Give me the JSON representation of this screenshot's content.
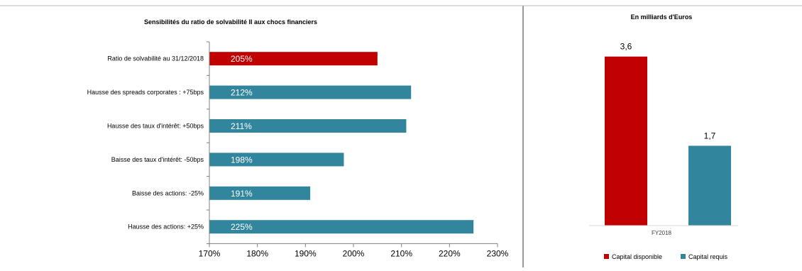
{
  "chart_data": [
    {
      "type": "bar",
      "orientation": "horizontal",
      "title": "Sensibilités du ratio de solvabilité II aux chocs financiers",
      "categories": [
        "Ratio de solvabilité au 31/12/2018",
        "Hausse des spreads corporates : +75bps",
        "Hausse des taux d'intérêt: +50bps",
        "Baisse des taux d'intérêt: -50bps",
        "Baisse des actions: -25%",
        "Hausse des actions: +25%"
      ],
      "values": [
        205,
        212,
        211,
        198,
        191,
        225
      ],
      "value_labels": [
        "205%",
        "212%",
        "211%",
        "198%",
        "191%",
        "225%"
      ],
      "bar_colors": [
        "#c00000",
        "#31859c",
        "#31859c",
        "#31859c",
        "#31859c",
        "#31859c"
      ],
      "xlim": [
        170,
        230
      ],
      "xticks": [
        170,
        180,
        190,
        200,
        210,
        220,
        230
      ],
      "xtick_labels": [
        "170%",
        "180%",
        "190%",
        "200%",
        "210%",
        "220%",
        "230%"
      ],
      "xlabel": "",
      "ylabel": "",
      "grid": false,
      "legend": "none"
    },
    {
      "type": "bar",
      "title": "En milliards d'Euros",
      "categories": [
        "FY2018"
      ],
      "series": [
        {
          "name": "Capital disponible",
          "values": [
            3.6
          ],
          "label": "3,6",
          "color": "#c00000"
        },
        {
          "name": "Capital requis",
          "values": [
            1.7
          ],
          "label": "1,7",
          "color": "#31859c"
        }
      ],
      "ylim": [
        0,
        4.2
      ],
      "xlabel": "",
      "ylabel": "",
      "grid": false,
      "legend": "bottom"
    }
  ]
}
